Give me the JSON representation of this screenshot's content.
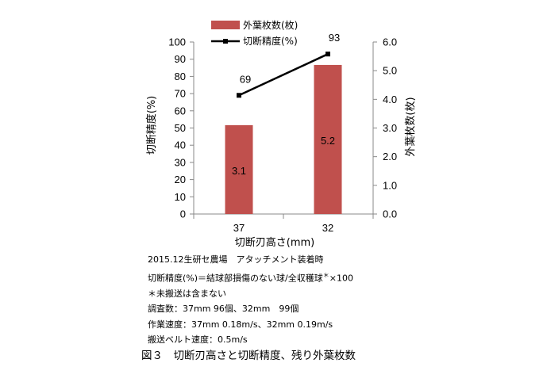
{
  "chart_data": {
    "type": "bar+line",
    "categories": [
      "37",
      "32"
    ],
    "xlabel": "切断刃高さ(mm)",
    "y_left": {
      "label": "切断精度(%)",
      "ylim": [
        0,
        100
      ],
      "ticks": [
        "0",
        "10",
        "20",
        "30",
        "40",
        "50",
        "60",
        "70",
        "80",
        "90",
        "100"
      ]
    },
    "y_right": {
      "label": "外葉枚数(枚)",
      "ylim": [
        0,
        6
      ],
      "ticks": [
        "0.0",
        "1.0",
        "2.0",
        "3.0",
        "4.0",
        "5.0",
        "6.0"
      ]
    },
    "series": [
      {
        "name": "外葉枚数(枚)",
        "type": "bar",
        "axis": "right",
        "values": [
          3.1,
          5.2
        ],
        "labels": [
          "3.1",
          "5.2"
        ],
        "color": "#c0504d"
      },
      {
        "name": "切断精度(%)",
        "type": "line",
        "axis": "left",
        "values": [
          69,
          93
        ],
        "labels": [
          "69",
          "93"
        ],
        "color": "#000000"
      }
    ],
    "legend": "top-center",
    "grid": false
  },
  "notes": {
    "line1": "2015.12生研セ農場　アタッチメント装着時",
    "line2a": "切断精度(%)＝結球部損傷のない球/全収穫球",
    "line2sup": "＊",
    "line2b": "×100",
    "line3": "＊未搬送は含まない",
    "line4": "調査数：37mm 96個、32mm　99個",
    "line5": "作業速度：37mm 0.18m/s、32mm 0.19m/s",
    "line6": "搬送ベルト速度：0.5m/s"
  },
  "caption": "図３　切断刃高さと切断精度、残り外葉枚数"
}
